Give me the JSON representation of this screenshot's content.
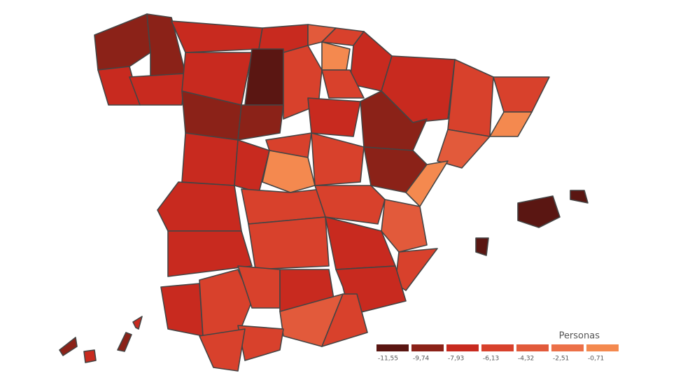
{
  "chart_data": {
    "type": "choropleth",
    "legend_title": "Personas",
    "legend_ticks": [
      {
        "value": -11.55,
        "label": "-11,55"
      },
      {
        "value": -9.74,
        "label": "-9,74"
      },
      {
        "value": -7.93,
        "label": "-7,93"
      },
      {
        "value": -6.13,
        "label": "-6,13"
      },
      {
        "value": -4.32,
        "label": "-4,32"
      },
      {
        "value": -2.51,
        "label": "-2,51"
      },
      {
        "value": -0.71,
        "label": "-0,71"
      }
    ],
    "colors": [
      "#5a1612",
      "#8b2218",
      "#c82a1f",
      "#d8412c",
      "#e25a3b",
      "#ec7048",
      "#f4894f"
    ],
    "values": [
      -9.0,
      -9.5,
      -7.5,
      -6.5,
      -4.0,
      -5.0,
      -6.5,
      -7.5,
      -5.0,
      -5.0,
      -0.6,
      -7.5,
      -7.5,
      -7.0,
      -11.5,
      -5.0,
      -0.5,
      -6.0,
      -8.5,
      -9.0,
      -7.0,
      -8.5,
      -3.0,
      -7.0,
      -6.0,
      -7.0,
      -5.0,
      -8.5,
      -0.6,
      0.5,
      -7.8,
      -6.0,
      -5.0,
      -4.0,
      -6.2,
      -6.0,
      -6.2,
      -5.0,
      -6.2,
      -7.8,
      -4.8,
      -4.8,
      -6.2,
      -3.5,
      -5.5,
      -5.0,
      -5.0,
      -11.5,
      -11.0,
      -11.0,
      -8.5,
      -7.5,
      -7.5,
      -8.5
    ]
  }
}
